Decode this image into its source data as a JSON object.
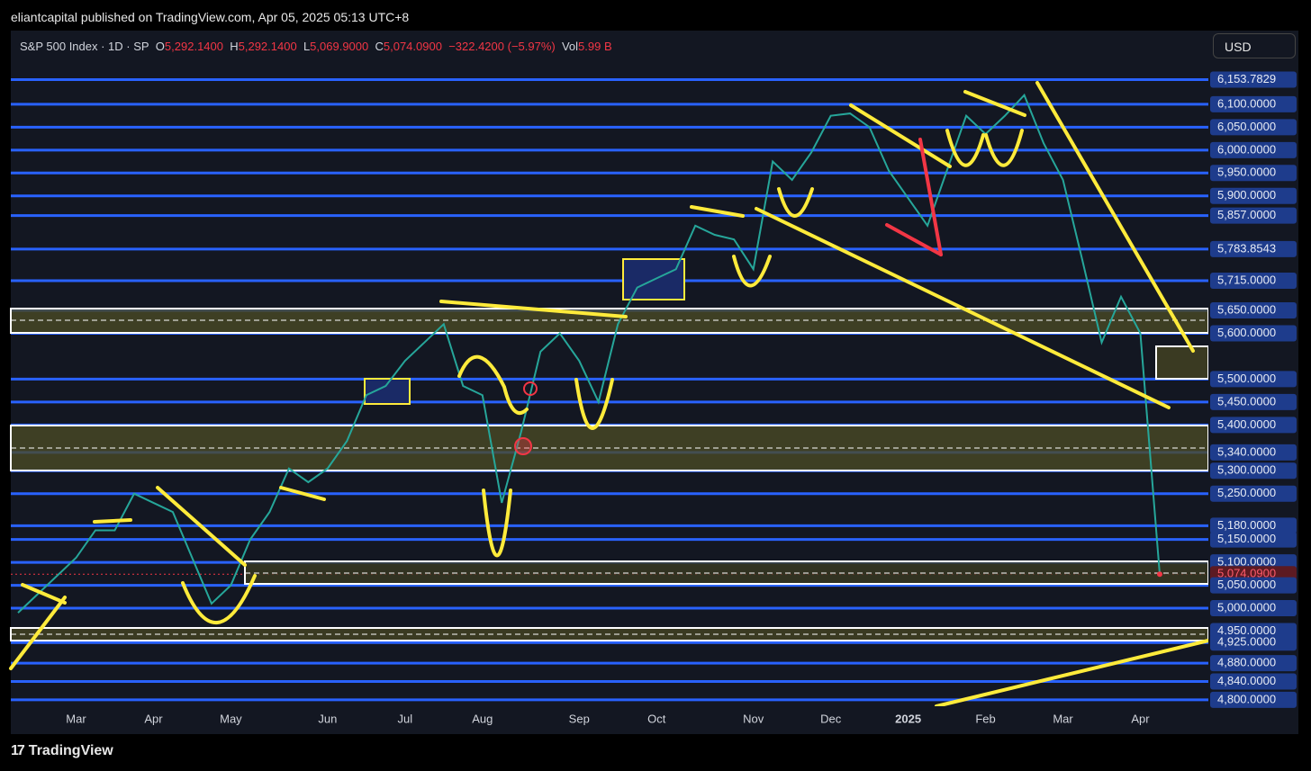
{
  "header": {
    "publisher": "eliantcapital published on TradingView.com, Apr 05, 2025 05:13 UTC+8"
  },
  "legend": {
    "symbol": "S&P 500 Index · 1D · SP",
    "open_key": "O",
    "open": "5,292.1400",
    "high_key": "H",
    "high": "5,292.1400",
    "low_key": "L",
    "low": "5,069.9000",
    "close_key": "C",
    "close": "5,074.0900",
    "change": "−322.4200 (−5.97%)",
    "volume_key": "Vol",
    "volume": "5.99 B"
  },
  "currency": "USD",
  "footer": "TradingView",
  "chart_data": {
    "type": "line",
    "color": "#26a69a",
    "grid": true,
    "categories": [
      null,
      null,
      null,
      "Mar",
      null,
      null,
      null,
      "Apr",
      null,
      null,
      null,
      "May",
      null,
      null,
      null,
      null,
      "Jun",
      null,
      null,
      null,
      "Jul",
      null,
      null,
      null,
      "Aug",
      null,
      null,
      null,
      null,
      "Sep",
      null,
      null,
      null,
      "Oct",
      null,
      null,
      null,
      null,
      "Nov",
      null,
      null,
      null,
      "Dec",
      null,
      null,
      null,
      "2025",
      null,
      null,
      null,
      "Feb",
      null,
      null,
      null,
      "Mar",
      null,
      null,
      null,
      "Apr",
      null
    ],
    "values": [
      4990,
      5030,
      5070,
      5110,
      5170,
      5170,
      5250,
      5230,
      5210,
      5110,
      5010,
      5050,
      5150,
      5210,
      5305,
      5275,
      5305,
      5365,
      5465,
      5485,
      5540,
      5580,
      5620,
      5485,
      5465,
      5230,
      5385,
      5560,
      5600,
      5540,
      5450,
      5620,
      5700,
      5720,
      5740,
      5835,
      5815,
      5805,
      5740,
      5975,
      5935,
      5995,
      6075,
      6080,
      6050,
      5955,
      5895,
      5835,
      5955,
      6075,
      6035,
      6075,
      6120,
      6015,
      5935,
      5760,
      5580,
      5680,
      5600,
      5074.09
    ],
    "ylim": [
      4786,
      6253
    ],
    "yticks": [
      {
        "value": 6153.7829,
        "label": "6,153.7829"
      },
      {
        "value": 6100,
        "label": "6,100.0000"
      },
      {
        "value": 6050,
        "label": "6,050.0000"
      },
      {
        "value": 6000,
        "label": "6,000.0000"
      },
      {
        "value": 5950,
        "label": "5,950.0000"
      },
      {
        "value": 5900,
        "label": "5,900.0000"
      },
      {
        "value": 5857,
        "label": "5,857.0000"
      },
      {
        "value": 5783.8543,
        "label": "5,783.8543"
      },
      {
        "value": 5715,
        "label": "5,715.0000"
      },
      {
        "value": 5650,
        "label": "5,650.0000"
      },
      {
        "value": 5600,
        "label": "5,600.0000"
      },
      {
        "value": 5500,
        "label": "5,500.0000"
      },
      {
        "value": 5450,
        "label": "5,450.0000"
      },
      {
        "value": 5400,
        "label": "5,400.0000"
      },
      {
        "value": 5340,
        "label": "5,340.0000"
      },
      {
        "value": 5300,
        "label": "5,300.0000"
      },
      {
        "value": 5250,
        "label": "5,250.0000"
      },
      {
        "value": 5180,
        "label": "5,180.0000"
      },
      {
        "value": 5150,
        "label": "5,150.0000"
      },
      {
        "value": 5100,
        "label": "5,100.0000"
      },
      {
        "value": 5074.09,
        "label": "5,074.0900"
      },
      {
        "value": 5050,
        "label": "5,050.0000"
      },
      {
        "value": 5000,
        "label": "5,000.0000"
      },
      {
        "value": 4950,
        "label": "4,950.0000"
      },
      {
        "value": 4925,
        "label": "4,925.0000"
      },
      {
        "value": 4880,
        "label": "4,880.0000"
      },
      {
        "value": 4840,
        "label": "4,840.0000"
      },
      {
        "value": 4800,
        "label": "4,800.0000"
      }
    ]
  }
}
